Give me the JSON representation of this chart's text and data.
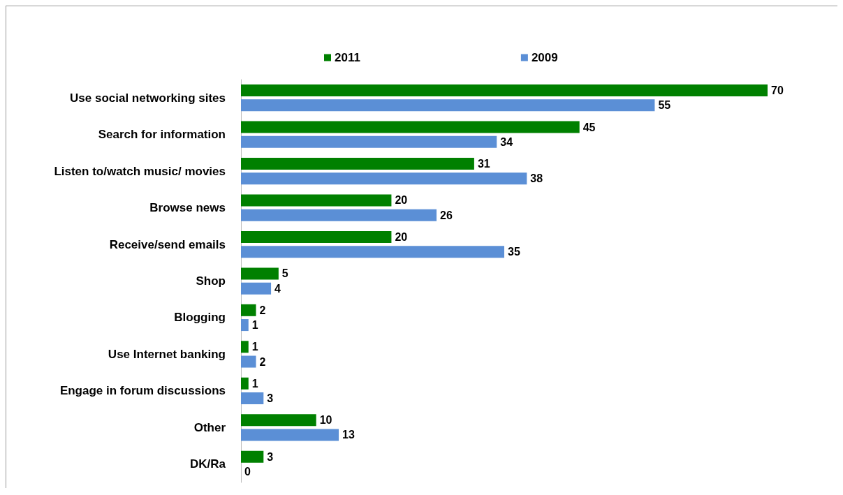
{
  "chart_data": {
    "type": "bar",
    "orientation": "horizontal",
    "categories": [
      "Use social networking sites",
      "Search for information",
      "Listen to/watch music/ movies",
      "Browse news",
      "Receive/send emails",
      "Shop",
      "Blogging",
      "Use Internet banking",
      "Engage in forum discussions",
      "Other",
      "DK/Ra"
    ],
    "series": [
      {
        "name": "2011",
        "color": "#008000",
        "values": [
          70,
          45,
          31,
          20,
          20,
          5,
          2,
          1,
          1,
          10,
          3
        ]
      },
      {
        "name": "2009",
        "color": "#5b8fd6",
        "values": [
          55,
          34,
          38,
          26,
          35,
          4,
          1,
          2,
          3,
          13,
          0
        ]
      }
    ],
    "data_labels": true,
    "legend": "top",
    "grid": false
  }
}
